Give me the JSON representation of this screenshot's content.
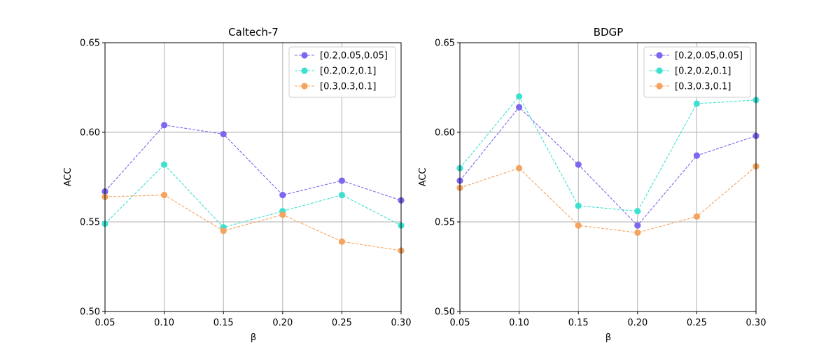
{
  "chart_data": [
    {
      "type": "line",
      "title": "Caltech-7",
      "xlabel": "β",
      "ylabel": "ACC",
      "x": [
        0.05,
        0.1,
        0.15,
        0.2,
        0.25,
        0.3
      ],
      "xtick_labels": [
        "0.05",
        "0.10",
        "0.15",
        "0.20",
        "0.25",
        "0.30"
      ],
      "xlim": [
        0.05,
        0.3
      ],
      "ylim": [
        0.5,
        0.65
      ],
      "yticks": [
        0.5,
        0.55,
        0.6,
        0.65
      ],
      "ytick_labels": [
        "0.50",
        "0.55",
        "0.60",
        "0.65"
      ],
      "grid": true,
      "legend_position": "top-right",
      "series": [
        {
          "name": "[0.2,0.05,0.05]",
          "color": "#7b68ee",
          "values": [
            0.567,
            0.604,
            0.599,
            0.565,
            0.573,
            0.562
          ]
        },
        {
          "name": "[0.2,0.2,0.1]",
          "color": "#40e0d0",
          "values": [
            0.549,
            0.582,
            0.547,
            0.556,
            0.565,
            0.548
          ]
        },
        {
          "name": "[0.3,0.3,0.1]",
          "color": "#f4a460",
          "values": [
            0.564,
            0.565,
            0.545,
            0.554,
            0.539,
            0.534
          ]
        }
      ]
    },
    {
      "type": "line",
      "title": "BDGP",
      "xlabel": "β",
      "ylabel": "ACC",
      "x": [
        0.05,
        0.1,
        0.15,
        0.2,
        0.25,
        0.3
      ],
      "xtick_labels": [
        "0.05",
        "0.10",
        "0.15",
        "0.20",
        "0.25",
        "0.30"
      ],
      "xlim": [
        0.05,
        0.3
      ],
      "ylim": [
        0.5,
        0.65
      ],
      "yticks": [
        0.5,
        0.55,
        0.6,
        0.65
      ],
      "ytick_labels": [
        "0.50",
        "0.55",
        "0.60",
        "0.65"
      ],
      "grid": true,
      "legend_position": "top-right",
      "series": [
        {
          "name": "[0.2,0.05,0.05]",
          "color": "#7b68ee",
          "values": [
            0.573,
            0.614,
            0.582,
            0.548,
            0.587,
            0.598
          ]
        },
        {
          "name": "[0.2,0.2,0.1]",
          "color": "#40e0d0",
          "values": [
            0.58,
            0.62,
            0.559,
            0.556,
            0.616,
            0.618
          ]
        },
        {
          "name": "[0.3,0.3,0.1]",
          "color": "#f4a460",
          "values": [
            0.569,
            0.58,
            0.548,
            0.544,
            0.553,
            0.581
          ]
        }
      ]
    }
  ]
}
